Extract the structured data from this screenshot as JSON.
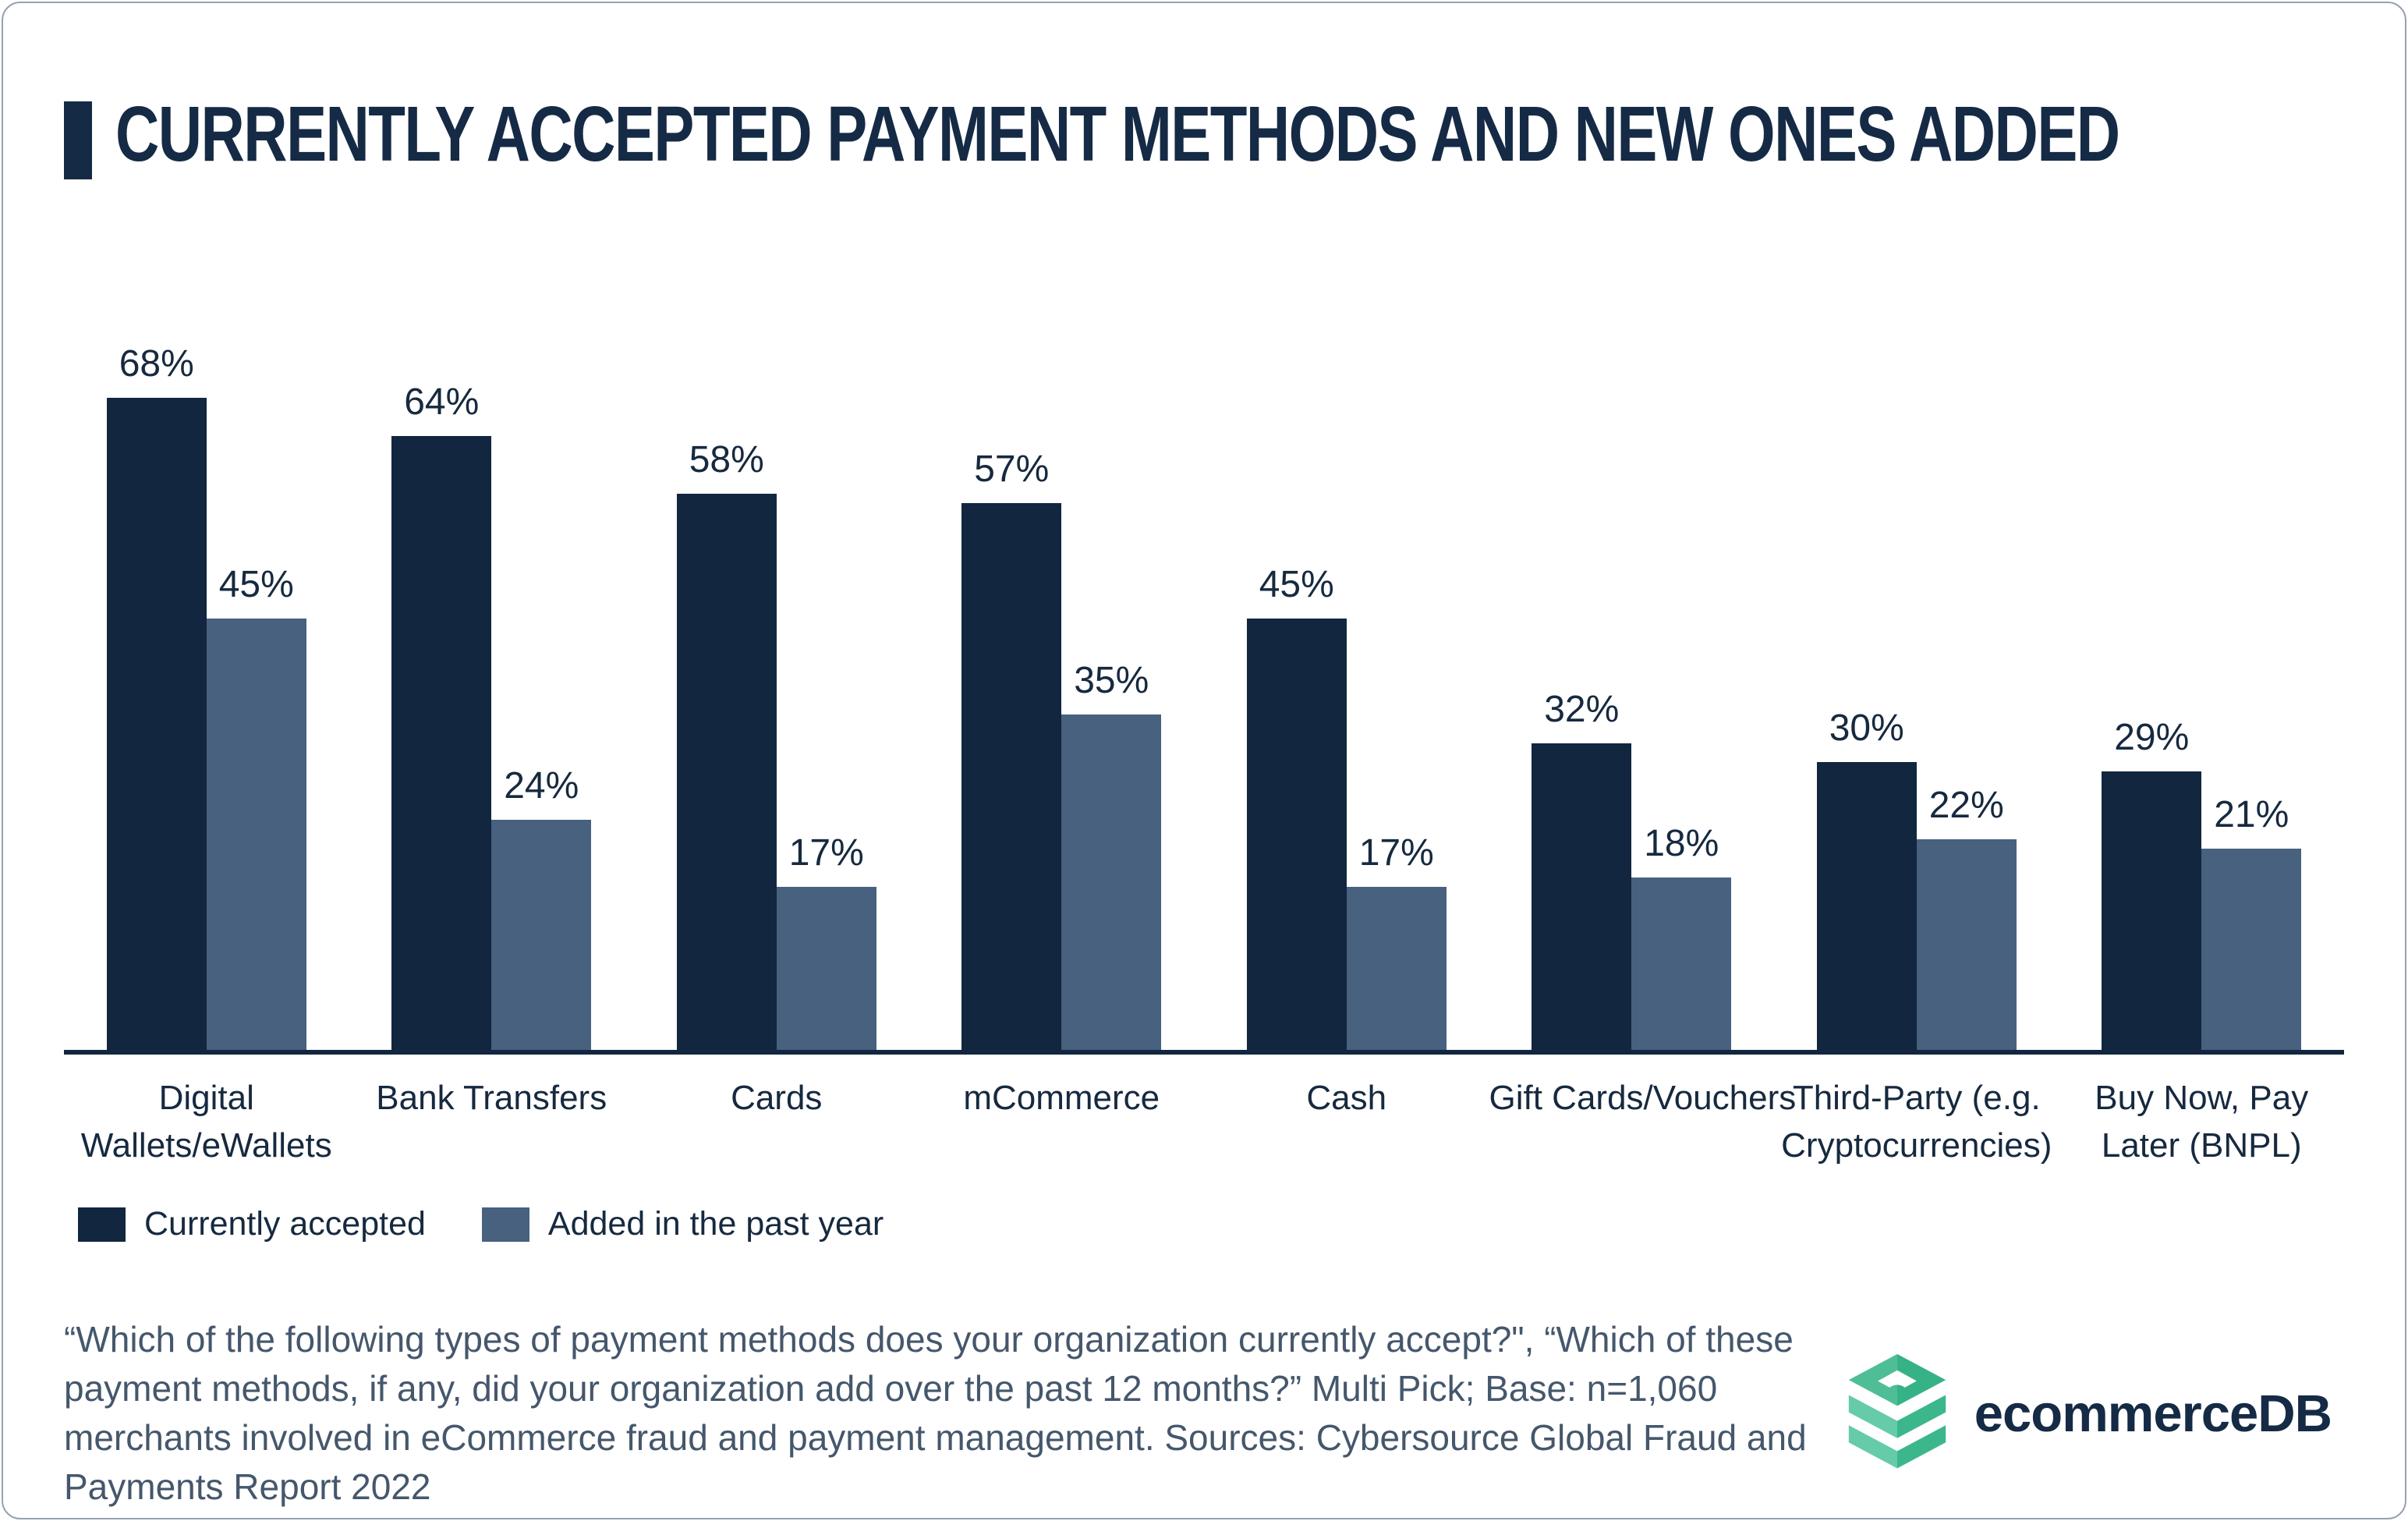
{
  "header": {
    "title": "CURRENTLY ACCEPTED PAYMENT METHODS AND NEW ONES ADDED",
    "accent_color": "#152a45"
  },
  "chart_data": {
    "type": "bar",
    "title": "Currently accepted payment methods and new ones added",
    "categories": [
      "Digital Wallets/eWallets",
      "Bank Transfers",
      "Cards",
      "mCommerce",
      "Cash",
      "Gift Cards/Vouchers",
      "Third-Party (e.g. Cryptocurrencies)",
      "Buy Now, Pay Later (BNPL)"
    ],
    "category_label_lines": [
      [
        "Digital",
        "Wallets/eWallets"
      ],
      [
        "Bank Transfers"
      ],
      [
        "Cards"
      ],
      [
        "mCommerce"
      ],
      [
        "Cash"
      ],
      [
        "Gift Cards/Vouchers"
      ],
      [
        "Third-Party (e.g.",
        "Cryptocurrencies)"
      ],
      [
        "Buy Now, Pay",
        "Later (BNPL)"
      ]
    ],
    "series": [
      {
        "name": "Currently accepted",
        "color": "#12263f",
        "values": [
          68,
          64,
          58,
          57,
          45,
          32,
          30,
          29
        ]
      },
      {
        "name": "Added in the past year",
        "color": "#47617f",
        "values": [
          45,
          24,
          17,
          35,
          17,
          18,
          22,
          21
        ]
      }
    ],
    "value_suffix": "%",
    "data_labels": true,
    "ylim": [
      0,
      68
    ],
    "grid": false,
    "axis_line_color": "#12263f",
    "legend_position": "bottom-left"
  },
  "footnote": {
    "text": "“Which of the following types of payment methods does your organization currently accept?\", “Which of these payment methods, if any, did your organization add over the past 12 months?” Multi Pick; Base: n=1,060 merchants involved in eCommerce fraud and payment management. Sources: Cybersource Global Fraud and Payments Report 2022"
  },
  "logo": {
    "text": "ecommerceDB",
    "icon": "ecommerceDB-stack-icon",
    "icon_colors": {
      "top_left": "#4fbe97",
      "top_right": "#35b286",
      "band_left": "#66cba9",
      "band_right": "#3cb78c"
    },
    "text_color": "#152a45"
  }
}
